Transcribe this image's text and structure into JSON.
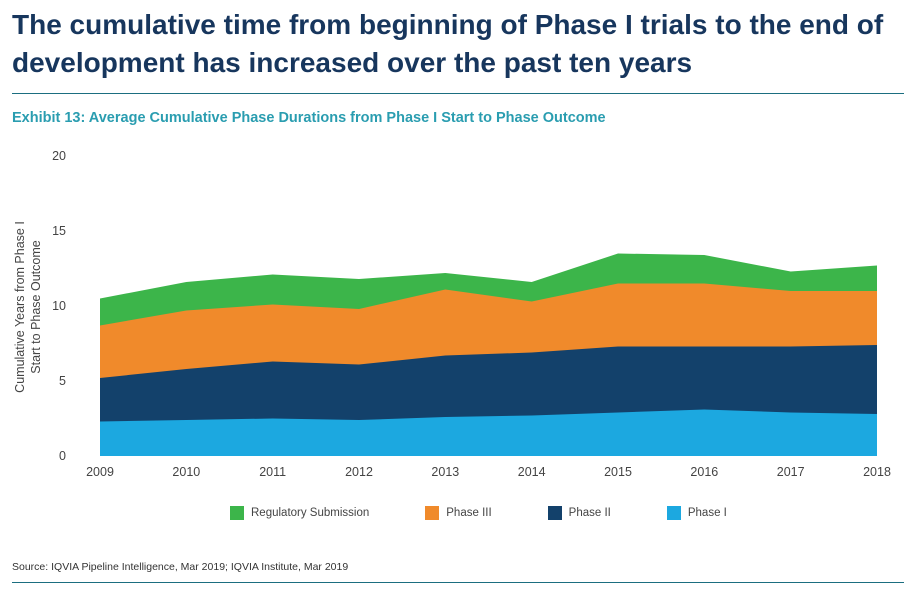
{
  "headline": "The cumulative time from beginning of Phase I trials to the end of development has increased over the past ten years",
  "exhibit_title": "Exhibit 13: Average Cumulative Phase Durations from Phase I Start to Phase Outcome",
  "source": "Source: IQVIA Pipeline Intelligence, Mar 2019; IQVIA Institute, Mar 2019",
  "colors": {
    "regulatory": "#3cb54a",
    "phase3": "#f08a2b",
    "phase2": "#13416b",
    "phase1": "#1ca8e0",
    "rule": "#1b6e80",
    "headline": "#17365d",
    "exhibit": "#2a9db0"
  },
  "chart_data": {
    "type": "area",
    "stacked": false,
    "title": "Exhibit 13: Average Cumulative Phase Durations from Phase I Start to Phase Outcome",
    "xlabel": "",
    "ylabel": "Cumulative Years from Phase I Start to Phase Outcome",
    "ylim": [
      0,
      20
    ],
    "yticks": [
      "0",
      "5",
      "10",
      "15",
      "20"
    ],
    "categories": [
      "2009",
      "2010",
      "2011",
      "2012",
      "2013",
      "2014",
      "2015",
      "2016",
      "2017",
      "2018"
    ],
    "series": [
      {
        "name": "Regulatory Submission",
        "color": "#3cb54a",
        "values": [
          10.5,
          11.6,
          12.1,
          11.8,
          12.2,
          11.6,
          13.5,
          13.4,
          12.3,
          12.7
        ]
      },
      {
        "name": "Phase III",
        "color": "#f08a2b",
        "values": [
          8.7,
          9.7,
          10.1,
          9.8,
          11.1,
          10.3,
          11.5,
          11.5,
          11.0,
          11.0
        ]
      },
      {
        "name": "Phase II",
        "color": "#13416b",
        "values": [
          5.2,
          5.8,
          6.3,
          6.1,
          6.7,
          6.9,
          7.3,
          7.3,
          7.3,
          7.4
        ]
      },
      {
        "name": "Phase I",
        "color": "#1ca8e0",
        "values": [
          2.3,
          2.4,
          2.5,
          2.4,
          2.6,
          2.7,
          2.9,
          3.1,
          2.9,
          2.8
        ]
      }
    ],
    "legend": [
      "Regulatory Submission",
      "Phase III",
      "Phase II",
      "Phase I"
    ],
    "legend_position": "bottom",
    "grid": false
  }
}
